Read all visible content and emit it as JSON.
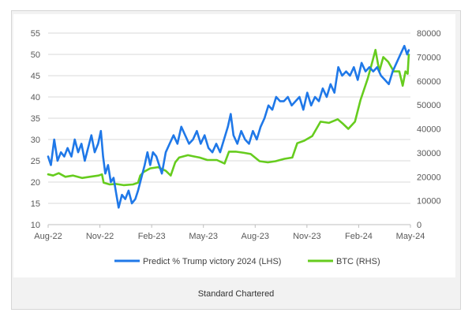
{
  "caption": "Standard Chartered",
  "colors": {
    "lhs": "#1f78e8",
    "rhs": "#66cc1e",
    "grid": "#d9d9d9",
    "axis": "#bfbfbf",
    "frame_bg": "#f2f2f2"
  },
  "chart_data": {
    "type": "line",
    "title": "",
    "grid": true,
    "legend_position": "bottom",
    "x_axis": {
      "type": "date",
      "range": [
        "2022-08-01",
        "2024-05-15"
      ],
      "ticks": [
        "Aug-22",
        "Nov-22",
        "Feb-23",
        "May-23",
        "Aug-23",
        "Nov-23",
        "Feb-24",
        "May-24"
      ]
    },
    "y_left": {
      "min": 10,
      "max": 55,
      "ticks": [
        "10",
        "15",
        "20",
        "25",
        "30",
        "35",
        "40",
        "45",
        "50",
        "55"
      ]
    },
    "y_right": {
      "min": 0,
      "max": 80000,
      "ticks": [
        "0",
        "10000",
        "20000",
        "30000",
        "40000",
        "50000",
        "60000",
        "70000",
        "80000"
      ]
    },
    "series": [
      {
        "name": "Predict % Trump victory 2024 (LHS)",
        "axis": "left",
        "points": [
          [
            "2022-08-01",
            26
          ],
          [
            "2022-08-06",
            24
          ],
          [
            "2022-08-12",
            30
          ],
          [
            "2022-08-18",
            25
          ],
          [
            "2022-08-24",
            27
          ],
          [
            "2022-08-30",
            26
          ],
          [
            "2022-09-05",
            28
          ],
          [
            "2022-09-12",
            26
          ],
          [
            "2022-09-18",
            30
          ],
          [
            "2022-09-24",
            27
          ],
          [
            "2022-09-30",
            29
          ],
          [
            "2022-10-06",
            25
          ],
          [
            "2022-10-12",
            28
          ],
          [
            "2022-10-18",
            31
          ],
          [
            "2022-10-24",
            27
          ],
          [
            "2022-10-30",
            29
          ],
          [
            "2022-11-04",
            32
          ],
          [
            "2022-11-08",
            26
          ],
          [
            "2022-11-12",
            22
          ],
          [
            "2022-11-17",
            24
          ],
          [
            "2022-11-22",
            20
          ],
          [
            "2022-11-27",
            21
          ],
          [
            "2022-12-02",
            17
          ],
          [
            "2022-12-06",
            14
          ],
          [
            "2022-12-12",
            17
          ],
          [
            "2022-12-18",
            16
          ],
          [
            "2022-12-24",
            18
          ],
          [
            "2022-12-30",
            15
          ],
          [
            "2023-01-05",
            16
          ],
          [
            "2023-01-10",
            18
          ],
          [
            "2023-01-16",
            21
          ],
          [
            "2023-01-22",
            24
          ],
          [
            "2023-01-27",
            27
          ],
          [
            "2023-02-01",
            24
          ],
          [
            "2023-02-06",
            27
          ],
          [
            "2023-02-12",
            26
          ],
          [
            "2023-02-17",
            24
          ],
          [
            "2023-02-22",
            22
          ],
          [
            "2023-03-01",
            27
          ],
          [
            "2023-03-08",
            29
          ],
          [
            "2023-03-15",
            31
          ],
          [
            "2023-03-22",
            29
          ],
          [
            "2023-03-29",
            33
          ],
          [
            "2023-04-05",
            31
          ],
          [
            "2023-04-12",
            29
          ],
          [
            "2023-04-19",
            30
          ],
          [
            "2023-04-26",
            32
          ],
          [
            "2023-05-03",
            29
          ],
          [
            "2023-05-10",
            31
          ],
          [
            "2023-05-17",
            28
          ],
          [
            "2023-05-24",
            27
          ],
          [
            "2023-05-31",
            29
          ],
          [
            "2023-06-07",
            27
          ],
          [
            "2023-06-14",
            30
          ],
          [
            "2023-06-21",
            33
          ],
          [
            "2023-06-26",
            36
          ],
          [
            "2023-07-01",
            31
          ],
          [
            "2023-07-08",
            29
          ],
          [
            "2023-07-15",
            32
          ],
          [
            "2023-07-22",
            30
          ],
          [
            "2023-07-29",
            29
          ],
          [
            "2023-08-05",
            32
          ],
          [
            "2023-08-12",
            30
          ],
          [
            "2023-08-19",
            33
          ],
          [
            "2023-08-26",
            35
          ],
          [
            "2023-09-02",
            38
          ],
          [
            "2023-09-09",
            37
          ],
          [
            "2023-09-16",
            40
          ],
          [
            "2023-09-23",
            39
          ],
          [
            "2023-09-30",
            39
          ],
          [
            "2023-10-07",
            40
          ],
          [
            "2023-10-14",
            38
          ],
          [
            "2023-10-21",
            39
          ],
          [
            "2023-10-28",
            40
          ],
          [
            "2023-11-04",
            37
          ],
          [
            "2023-11-11",
            41
          ],
          [
            "2023-11-18",
            38
          ],
          [
            "2023-11-25",
            40
          ],
          [
            "2023-12-02",
            39
          ],
          [
            "2023-12-09",
            42
          ],
          [
            "2023-12-16",
            40
          ],
          [
            "2023-12-23",
            43
          ],
          [
            "2023-12-30",
            41
          ],
          [
            "2024-01-06",
            47
          ],
          [
            "2024-01-13",
            45
          ],
          [
            "2024-01-20",
            46
          ],
          [
            "2024-01-27",
            45
          ],
          [
            "2024-02-03",
            47
          ],
          [
            "2024-02-10",
            44
          ],
          [
            "2024-02-17",
            48
          ],
          [
            "2024-02-24",
            46
          ],
          [
            "2024-03-02",
            47
          ],
          [
            "2024-03-09",
            46
          ],
          [
            "2024-03-16",
            47
          ],
          [
            "2024-03-23",
            45
          ],
          [
            "2024-03-30",
            44
          ],
          [
            "2024-04-06",
            43
          ],
          [
            "2024-04-13",
            46
          ],
          [
            "2024-04-20",
            48
          ],
          [
            "2024-04-27",
            50
          ],
          [
            "2024-05-04",
            52
          ],
          [
            "2024-05-09",
            50
          ],
          [
            "2024-05-12",
            51
          ]
        ]
      },
      {
        "name": "BTC (RHS)",
        "axis": "right",
        "points": [
          [
            "2022-08-01",
            21000
          ],
          [
            "2022-08-10",
            20500
          ],
          [
            "2022-08-20",
            21500
          ],
          [
            "2022-09-01",
            20000
          ],
          [
            "2022-09-15",
            20500
          ],
          [
            "2022-10-01",
            19500
          ],
          [
            "2022-10-15",
            20000
          ],
          [
            "2022-10-31",
            20500
          ],
          [
            "2022-11-06",
            21000
          ],
          [
            "2022-11-09",
            17500
          ],
          [
            "2022-11-20",
            16800
          ],
          [
            "2022-12-01",
            17000
          ],
          [
            "2022-12-15",
            16500
          ],
          [
            "2023-01-01",
            16800
          ],
          [
            "2023-01-10",
            17500
          ],
          [
            "2023-01-14",
            20500
          ],
          [
            "2023-01-20",
            22000
          ],
          [
            "2023-02-01",
            23500
          ],
          [
            "2023-02-15",
            24000
          ],
          [
            "2023-03-01",
            22500
          ],
          [
            "2023-03-10",
            20500
          ],
          [
            "2023-03-18",
            26000
          ],
          [
            "2023-03-25",
            28000
          ],
          [
            "2023-04-10",
            29000
          ],
          [
            "2023-04-20",
            28500
          ],
          [
            "2023-05-01",
            28000
          ],
          [
            "2023-05-15",
            27000
          ],
          [
            "2023-06-01",
            27000
          ],
          [
            "2023-06-15",
            25500
          ],
          [
            "2023-06-23",
            30500
          ],
          [
            "2023-07-05",
            30500
          ],
          [
            "2023-07-20",
            30000
          ],
          [
            "2023-08-01",
            29500
          ],
          [
            "2023-08-17",
            26500
          ],
          [
            "2023-09-01",
            26000
          ],
          [
            "2023-09-15",
            26500
          ],
          [
            "2023-10-01",
            27500
          ],
          [
            "2023-10-15",
            28000
          ],
          [
            "2023-10-24",
            34000
          ],
          [
            "2023-11-05",
            35000
          ],
          [
            "2023-11-20",
            37000
          ],
          [
            "2023-12-05",
            43000
          ],
          [
            "2023-12-20",
            42500
          ],
          [
            "2024-01-05",
            44000
          ],
          [
            "2024-01-15",
            42000
          ],
          [
            "2024-01-24",
            40000
          ],
          [
            "2024-02-05",
            43000
          ],
          [
            "2024-02-15",
            52000
          ],
          [
            "2024-02-28",
            61000
          ],
          [
            "2024-03-05",
            66000
          ],
          [
            "2024-03-13",
            73000
          ],
          [
            "2024-03-20",
            64000
          ],
          [
            "2024-03-27",
            70000
          ],
          [
            "2024-04-05",
            68000
          ],
          [
            "2024-04-15",
            64000
          ],
          [
            "2024-04-25",
            64000
          ],
          [
            "2024-05-01",
            58000
          ],
          [
            "2024-05-06",
            64000
          ],
          [
            "2024-05-10",
            63000
          ],
          [
            "2024-05-12",
            71000
          ]
        ]
      }
    ]
  }
}
